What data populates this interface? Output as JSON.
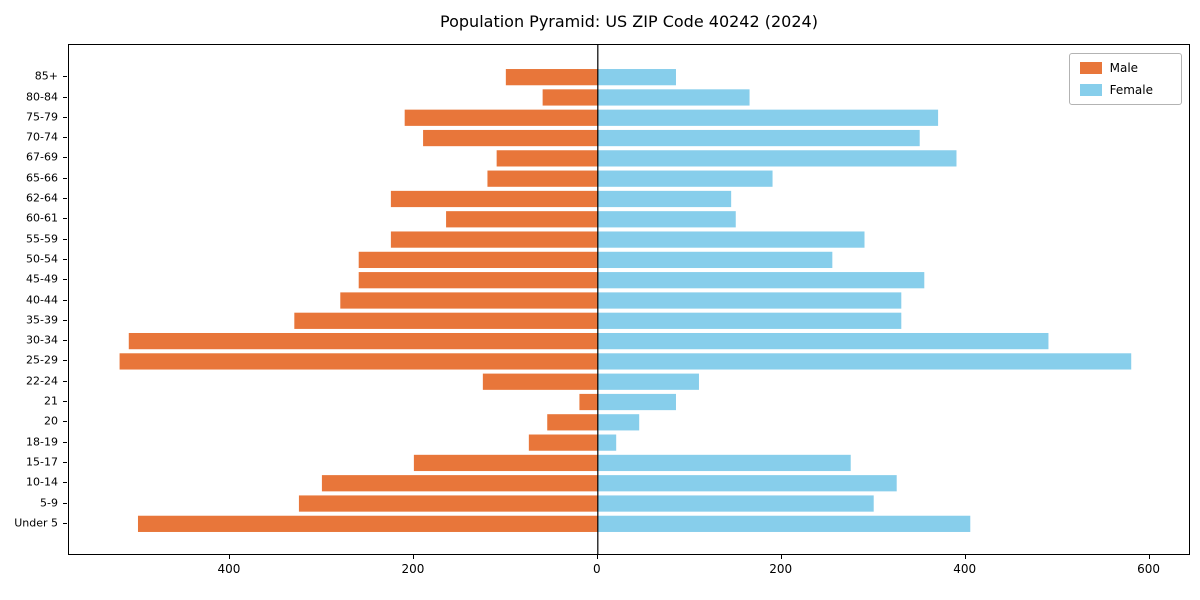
{
  "chart_data": {
    "type": "bar",
    "subtype": "population-pyramid",
    "orientation": "horizontal",
    "title": "Population Pyramid: US ZIP Code 40242 (2024)",
    "categories_top_to_bottom": [
      "85+",
      "80-84",
      "75-79",
      "70-74",
      "67-69",
      "65-66",
      "62-64",
      "60-61",
      "55-59",
      "50-54",
      "45-49",
      "40-44",
      "35-39",
      "30-34",
      "25-29",
      "22-24",
      "21",
      "20",
      "18-19",
      "15-17",
      "10-14",
      "5-9",
      "Under 5"
    ],
    "series": [
      {
        "name": "Male",
        "side": "left",
        "color": "#e8763a",
        "values": [
          100,
          60,
          210,
          190,
          110,
          120,
          225,
          165,
          225,
          260,
          260,
          280,
          330,
          510,
          520,
          125,
          20,
          55,
          75,
          200,
          300,
          325,
          500
        ]
      },
      {
        "name": "Female",
        "side": "right",
        "color": "#87ceeb",
        "values": [
          85,
          165,
          370,
          350,
          390,
          190,
          145,
          150,
          290,
          255,
          355,
          330,
          330,
          490,
          580,
          110,
          85,
          45,
          20,
          275,
          325,
          300,
          405
        ]
      }
    ],
    "xlim": [
      -575,
      645
    ],
    "x_ticks": [
      -400,
      -200,
      0,
      200,
      400,
      600
    ],
    "x_tick_labels": [
      "400",
      "200",
      "0",
      "200",
      "400",
      "600"
    ],
    "legend_position": "upper right",
    "grid": false,
    "zero_line": true,
    "note": "Male values extend left of zero, Female values extend right of zero"
  }
}
